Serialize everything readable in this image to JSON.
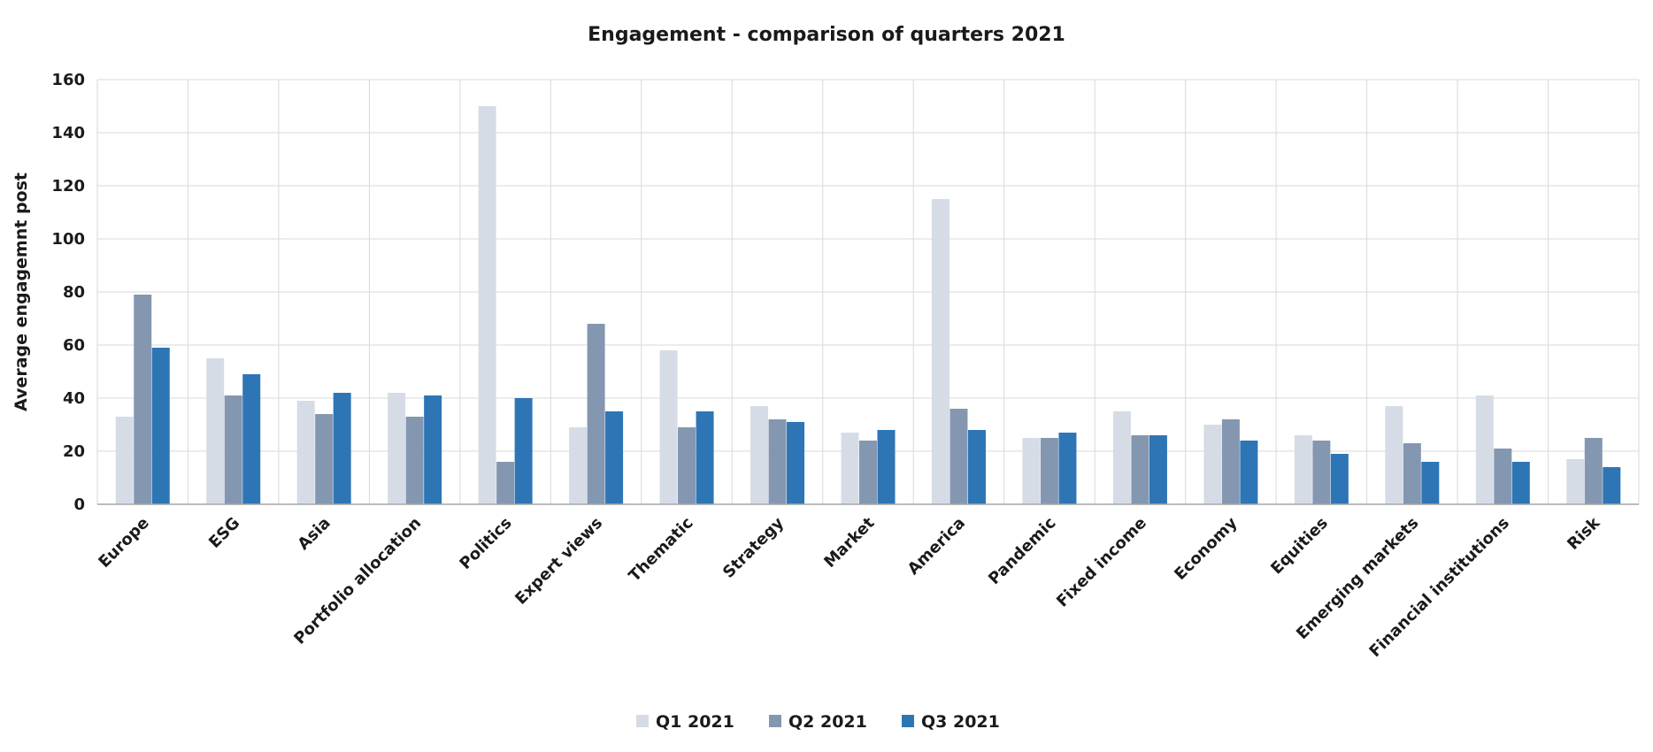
{
  "chart_data": {
    "type": "bar",
    "title": "Engagement - comparison of quarters 2021",
    "xlabel": "",
    "ylabel": "Average engagemnt post",
    "ylim": [
      0,
      160
    ],
    "yticks": [
      "0",
      "20",
      "40",
      "60",
      "80",
      "100",
      "120",
      "140",
      "160"
    ],
    "grid": true,
    "legend_position": "bottom",
    "categories": [
      "Europe",
      "ESG",
      "Asia",
      "Portfolio allocation",
      "Politics",
      "Expert views",
      "Thematic",
      "Strategy",
      "Market",
      "America",
      "Pandemic",
      "Fixed income",
      "Economy",
      "Equities",
      "Emerging markets",
      "Financial institutions",
      "Risk"
    ],
    "series": [
      {
        "name": "Q1 2021",
        "color": "#d6dce5",
        "values": [
          33,
          55,
          39,
          42,
          150,
          29,
          58,
          37,
          27,
          115,
          25,
          35,
          30,
          26,
          37,
          41,
          17
        ]
      },
      {
        "name": "Q2 2021",
        "color": "#8497b0",
        "values": [
          79,
          41,
          34,
          33,
          16,
          68,
          29,
          32,
          24,
          36,
          25,
          26,
          32,
          24,
          23,
          21,
          25
        ]
      },
      {
        "name": "Q3 2021",
        "color": "#2e75b6",
        "values": [
          59,
          49,
          42,
          41,
          40,
          35,
          35,
          31,
          28,
          28,
          27,
          26,
          24,
          19,
          16,
          16,
          14
        ]
      }
    ]
  }
}
